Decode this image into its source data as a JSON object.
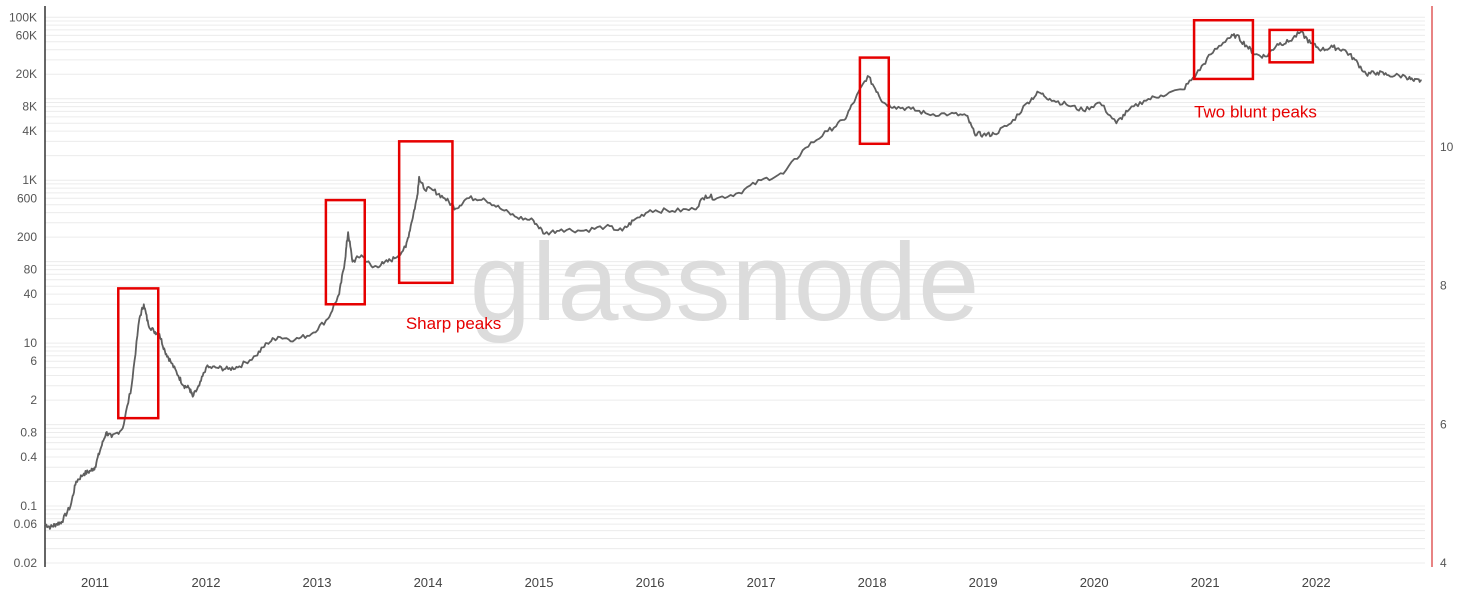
{
  "watermark": "glassnode",
  "colors": {
    "price_line": "#5f5f5f",
    "annotation": "#e60000",
    "right_axis": "#e05a5a",
    "grid": "#ececec",
    "left_axis": "#333333"
  },
  "chart_data": {
    "type": "line",
    "title": "",
    "xlabel": "",
    "ylabel": "",
    "y_scale": "log",
    "xlim": [
      2010.55,
      2022.98
    ],
    "ylim": [
      0.02,
      130000
    ],
    "grid": true,
    "legend": "none",
    "x_ticks": [
      "2011",
      "2012",
      "2013",
      "2014",
      "2015",
      "2016",
      "2017",
      "2018",
      "2019",
      "2020",
      "2021",
      "2022"
    ],
    "y_ticks": [
      {
        "label": "100K",
        "value": 100000
      },
      {
        "label": "60K",
        "value": 60000
      },
      {
        "label": "20K",
        "value": 20000
      },
      {
        "label": "8K",
        "value": 8000
      },
      {
        "label": "4K",
        "value": 4000
      },
      {
        "label": "1K",
        "value": 1000
      },
      {
        "label": "600",
        "value": 600
      },
      {
        "label": "200",
        "value": 200
      },
      {
        "label": "80",
        "value": 80
      },
      {
        "label": "40",
        "value": 40
      },
      {
        "label": "10",
        "value": 10
      },
      {
        "label": "6",
        "value": 6
      },
      {
        "label": "2",
        "value": 2
      },
      {
        "label": "0.8",
        "value": 0.8
      },
      {
        "label": "0.4",
        "value": 0.4
      },
      {
        "label": "0.1",
        "value": 0.1
      },
      {
        "label": "0.06",
        "value": 0.06
      },
      {
        "label": "0.02",
        "value": 0.02
      }
    ],
    "y2_ticks": [
      {
        "label": "10",
        "value": 10
      },
      {
        "label": "8",
        "value": 8
      },
      {
        "label": "6",
        "value": 6
      },
      {
        "label": "4",
        "value": 4
      }
    ],
    "y2lim": [
      4,
      12
    ],
    "series": [
      {
        "name": "",
        "points": [
          [
            2010.55,
            0.06
          ],
          [
            2010.6,
            0.055
          ],
          [
            2010.65,
            0.06
          ],
          [
            2010.7,
            0.064
          ],
          [
            2010.78,
            0.1
          ],
          [
            2010.83,
            0.2
          ],
          [
            2010.9,
            0.25
          ],
          [
            2010.96,
            0.27
          ],
          [
            2011.0,
            0.3
          ],
          [
            2011.05,
            0.5
          ],
          [
            2011.1,
            0.8
          ],
          [
            2011.15,
            0.7
          ],
          [
            2011.25,
            0.9
          ],
          [
            2011.33,
            3
          ],
          [
            2011.4,
            20
          ],
          [
            2011.44,
            30
          ],
          [
            2011.48,
            17
          ],
          [
            2011.53,
            14
          ],
          [
            2011.58,
            13
          ],
          [
            2011.63,
            8
          ],
          [
            2011.68,
            6
          ],
          [
            2011.75,
            4
          ],
          [
            2011.8,
            3
          ],
          [
            2011.85,
            2.8
          ],
          [
            2011.88,
            2.2
          ],
          [
            2011.94,
            3
          ],
          [
            2012.0,
            5
          ],
          [
            2012.1,
            5
          ],
          [
            2012.2,
            4.8
          ],
          [
            2012.3,
            5.2
          ],
          [
            2012.45,
            7
          ],
          [
            2012.55,
            10
          ],
          [
            2012.65,
            12
          ],
          [
            2012.8,
            11
          ],
          [
            2012.95,
            13
          ],
          [
            2013.1,
            20
          ],
          [
            2013.2,
            40
          ],
          [
            2013.25,
            100
          ],
          [
            2013.28,
            230
          ],
          [
            2013.32,
            100
          ],
          [
            2013.4,
            120
          ],
          [
            2013.5,
            85
          ],
          [
            2013.6,
            95
          ],
          [
            2013.7,
            110
          ],
          [
            2013.8,
            150
          ],
          [
            2013.85,
            300
          ],
          [
            2013.9,
            600
          ],
          [
            2013.92,
            1100
          ],
          [
            2013.96,
            800
          ],
          [
            2014.05,
            750
          ],
          [
            2014.15,
            600
          ],
          [
            2014.25,
            450
          ],
          [
            2014.35,
            600
          ],
          [
            2014.5,
            600
          ],
          [
            2014.65,
            450
          ],
          [
            2014.8,
            350
          ],
          [
            2014.95,
            320
          ],
          [
            2015.05,
            220
          ],
          [
            2015.2,
            250
          ],
          [
            2015.4,
            240
          ],
          [
            2015.6,
            270
          ],
          [
            2015.75,
            240
          ],
          [
            2015.85,
            320
          ],
          [
            2016.0,
            430
          ],
          [
            2016.2,
            420
          ],
          [
            2016.4,
            440
          ],
          [
            2016.5,
            650
          ],
          [
            2016.6,
            600
          ],
          [
            2016.8,
            700
          ],
          [
            2017.0,
            1000
          ],
          [
            2017.2,
            1200
          ],
          [
            2017.4,
            2500
          ],
          [
            2017.6,
            4000
          ],
          [
            2017.75,
            5500
          ],
          [
            2017.85,
            10000
          ],
          [
            2017.96,
            19000
          ],
          [
            2018.05,
            12000
          ],
          [
            2018.1,
            9000
          ],
          [
            2018.2,
            8000
          ],
          [
            2018.35,
            7500
          ],
          [
            2018.5,
            6500
          ],
          [
            2018.7,
            6500
          ],
          [
            2018.85,
            6200
          ],
          [
            2018.92,
            3800
          ],
          [
            2019.0,
            3600
          ],
          [
            2019.1,
            3700
          ],
          [
            2019.25,
            5000
          ],
          [
            2019.4,
            9000
          ],
          [
            2019.5,
            12000
          ],
          [
            2019.6,
            10000
          ],
          [
            2019.75,
            8500
          ],
          [
            2019.9,
            7200
          ],
          [
            2020.05,
            9000
          ],
          [
            2020.2,
            5000
          ],
          [
            2020.3,
            7000
          ],
          [
            2020.45,
            9500
          ],
          [
            2020.6,
            11000
          ],
          [
            2020.8,
            13000
          ],
          [
            2020.92,
            20000
          ],
          [
            2021.05,
            35000
          ],
          [
            2021.2,
            55000
          ],
          [
            2021.28,
            60000
          ],
          [
            2021.37,
            45000
          ],
          [
            2021.45,
            35000
          ],
          [
            2021.55,
            33000
          ],
          [
            2021.65,
            47000
          ],
          [
            2021.75,
            50000
          ],
          [
            2021.86,
            66000
          ],
          [
            2021.95,
            48000
          ],
          [
            2022.05,
            40000
          ],
          [
            2022.15,
            43000
          ],
          [
            2022.25,
            40000
          ],
          [
            2022.35,
            30000
          ],
          [
            2022.45,
            20000
          ],
          [
            2022.55,
            21000
          ],
          [
            2022.65,
            19500
          ],
          [
            2022.8,
            19000
          ],
          [
            2022.88,
            16500
          ],
          [
            2022.95,
            16800
          ]
        ]
      }
    ],
    "annotations": [
      {
        "name": "box-2011-peak",
        "x0": 2011.21,
        "x1": 2011.57,
        "y0": 1.2,
        "y1": 47
      },
      {
        "name": "box-2013-peak",
        "x0": 2013.08,
        "x1": 2013.43,
        "y0": 30,
        "y1": 570
      },
      {
        "name": "box-2014-peak",
        "x0": 2013.74,
        "x1": 2014.22,
        "y0": 55,
        "y1": 3000
      },
      {
        "name": "box-2018-peak",
        "x0": 2017.89,
        "x1": 2018.15,
        "y0": 2800,
        "y1": 32000
      },
      {
        "name": "box-2021-peak-a",
        "x0": 2020.9,
        "x1": 2021.43,
        "y0": 17500,
        "y1": 92000
      },
      {
        "name": "box-2021-peak-b",
        "x0": 2021.58,
        "x1": 2021.97,
        "y0": 28000,
        "y1": 70000
      }
    ],
    "labels": [
      {
        "name": "sharp-peaks-label",
        "text": "Sharp peaks",
        "x": 2013.8,
        "y": 15
      },
      {
        "name": "two-blunt-peaks-label",
        "text": "Two blunt peaks",
        "x": 2020.9,
        "y": 5900
      }
    ]
  }
}
